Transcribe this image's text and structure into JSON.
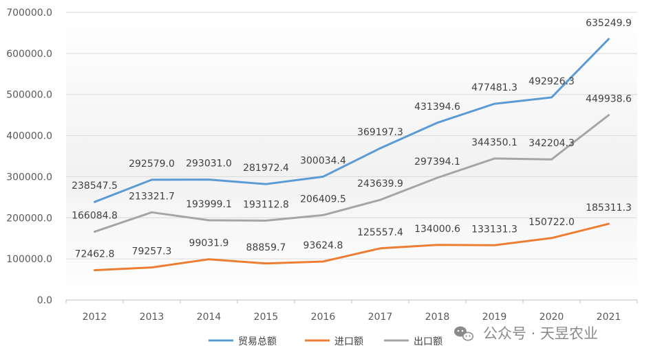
{
  "chart_data": {
    "type": "line",
    "categories": [
      "2012",
      "2013",
      "2014",
      "2015",
      "2016",
      "2017",
      "2018",
      "2019",
      "2020",
      "2021"
    ],
    "series": [
      {
        "name": "贸易总额",
        "color": "#5B9BD5",
        "values": [
          238547.5,
          292579.0,
          293031.0,
          281972.4,
          300034.4,
          369197.3,
          431394.6,
          477481.3,
          492926.3,
          635249.9
        ],
        "labels": [
          "238547.5",
          "292579.0",
          "293031.0",
          "281972.4",
          "300034.4",
          "369197.3",
          "431394.6",
          "477481.3",
          "492926.3",
          "635249.9"
        ]
      },
      {
        "name": "进口额",
        "color": "#ED7D31",
        "values": [
          72462.8,
          79257.3,
          99031.9,
          88859.7,
          93624.8,
          125557.4,
          134000.6,
          133131.3,
          150722.0,
          185311.3
        ],
        "labels": [
          "72462.8",
          "79257.3",
          "99031.9",
          "88859.7",
          "93624.8",
          "125557.4",
          "134000.6",
          "133131.3",
          "150722.0",
          "185311.3"
        ]
      },
      {
        "name": "出口额",
        "color": "#A5A5A5",
        "values": [
          166084.8,
          213321.7,
          193999.1,
          193112.8,
          206409.5,
          243639.9,
          297394.1,
          344350.1,
          342204.3,
          449938.6
        ],
        "labels": [
          "166084.8",
          "213321.7",
          "193999.1",
          "193112.8",
          "206409.5",
          "243639.9",
          "297394.1",
          "344350.1",
          "342204.3",
          "449938.6"
        ]
      }
    ],
    "y_ticks": [
      "0.0",
      "100000.0",
      "200000.0",
      "300000.0",
      "400000.0",
      "500000.0",
      "600000.0",
      "700000.0"
    ],
    "ylim": [
      0,
      700000
    ],
    "grid": true,
    "legend": "bottom"
  },
  "watermark": {
    "text": "公众号 · 天昱农业",
    "icon": "wechat-icon"
  }
}
